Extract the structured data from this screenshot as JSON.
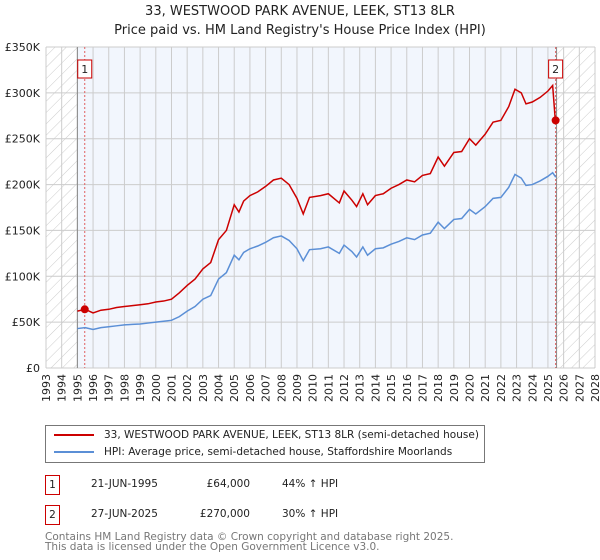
{
  "chart_data": {
    "type": "line",
    "title": "33, WESTWOOD PARK AVENUE, LEEK, ST13 8LR",
    "subtitle": "Price paid vs. HM Land Registry's House Price Index (HPI)",
    "xlim": [
      1993,
      2028
    ],
    "ylim": [
      0,
      350000
    ],
    "y_ticks": [
      0,
      50000,
      100000,
      150000,
      200000,
      250000,
      300000,
      350000
    ],
    "y_tick_labels": [
      "£0",
      "£50K",
      "£100K",
      "£150K",
      "£200K",
      "£250K",
      "£300K",
      "£350K"
    ],
    "x_tick_labels": [
      "1993",
      "1994",
      "1995",
      "1996",
      "1997",
      "1998",
      "1999",
      "2000",
      "2001",
      "2002",
      "2003",
      "2004",
      "2005",
      "2006",
      "2007",
      "2008",
      "2009",
      "2010",
      "2011",
      "2012",
      "2013",
      "2014",
      "2015",
      "2016",
      "2017",
      "2018",
      "2019",
      "2020",
      "2021",
      "2022",
      "2023",
      "2024",
      "2025",
      "2026",
      "2027",
      "2028"
    ],
    "grid": true,
    "series": [
      {
        "name": "33, WESTWOOD PARK AVENUE, LEEK, ST13 8LR (semi-detached house)",
        "color": "#cc0000",
        "x": [
          1995.0,
          1995.5,
          1996,
          1996.5,
          1997,
          1997.5,
          1998,
          1998.5,
          1999,
          1999.5,
          2000,
          2000.5,
          2001,
          2001.5,
          2002,
          2002.5,
          2003,
          2003.5,
          2004,
          2004.5,
          2005,
          2005.3,
          2005.6,
          2006,
          2006.5,
          2007,
          2007.5,
          2008,
          2008.5,
          2009,
          2009.4,
          2009.8,
          2010.5,
          2011,
          2011.7,
          2012,
          2012.5,
          2012.8,
          2013.2,
          2013.5,
          2014,
          2014.5,
          2015,
          2015.5,
          2016,
          2016.5,
          2017,
          2017.5,
          2018,
          2018.4,
          2019,
          2019.5,
          2020,
          2020.4,
          2021,
          2021.5,
          2022,
          2022.5,
          2022.9,
          2023.3,
          2023.6,
          2024,
          2024.5,
          2025,
          2025.3,
          2025.47
        ],
        "y": [
          62000,
          64000,
          60000,
          63000,
          64000,
          66000,
          67000,
          68000,
          69000,
          70000,
          72000,
          73000,
          75000,
          82000,
          90000,
          97000,
          108000,
          115000,
          140000,
          150000,
          178000,
          170000,
          182000,
          188000,
          192000,
          198000,
          205000,
          207000,
          200000,
          185000,
          168000,
          186000,
          188000,
          190000,
          180000,
          193000,
          183000,
          176000,
          190000,
          178000,
          188000,
          190000,
          196000,
          200000,
          205000,
          203000,
          210000,
          212000,
          230000,
          220000,
          235000,
          236000,
          250000,
          243000,
          255000,
          268000,
          270000,
          285000,
          304000,
          300000,
          288000,
          290000,
          295000,
          302000,
          308000,
          270000
        ]
      },
      {
        "name": "HPI: Average price, semi-detached house, Staffordshire Moorlands",
        "color": "#5b8fd6",
        "x": [
          1995.0,
          1995.5,
          1996,
          1996.5,
          1997,
          1997.5,
          1998,
          1998.5,
          1999,
          1999.5,
          2000,
          2000.5,
          2001,
          2001.5,
          2002,
          2002.5,
          2003,
          2003.5,
          2004,
          2004.5,
          2005,
          2005.3,
          2005.6,
          2006,
          2006.5,
          2007,
          2007.5,
          2008,
          2008.5,
          2009,
          2009.4,
          2009.8,
          2010.5,
          2011,
          2011.7,
          2012,
          2012.5,
          2012.8,
          2013.2,
          2013.5,
          2014,
          2014.5,
          2015,
          2015.5,
          2016,
          2016.5,
          2017,
          2017.5,
          2018,
          2018.4,
          2019,
          2019.5,
          2020,
          2020.4,
          2021,
          2021.5,
          2022,
          2022.5,
          2022.9,
          2023.3,
          2023.6,
          2024,
          2024.5,
          2025,
          2025.3,
          2025.5
        ],
        "y": [
          43000,
          44000,
          42000,
          44000,
          45000,
          46000,
          47000,
          47500,
          48000,
          49000,
          50000,
          51000,
          52000,
          56000,
          62000,
          67000,
          75000,
          79000,
          97000,
          104000,
          123000,
          118000,
          126000,
          130000,
          133000,
          137000,
          142000,
          144000,
          139000,
          130000,
          117000,
          129000,
          130000,
          132000,
          125000,
          134000,
          127000,
          121000,
          132000,
          123000,
          130000,
          131000,
          135000,
          138000,
          142000,
          140000,
          145000,
          147000,
          159000,
          152000,
          162000,
          163000,
          173000,
          168000,
          176000,
          185000,
          186000,
          197000,
          211000,
          207000,
          199000,
          200000,
          204000,
          209000,
          213000,
          208000
        ]
      }
    ],
    "sales": [
      {
        "label": "1",
        "x": 1995.47,
        "y": 64000
      },
      {
        "label": "2",
        "x": 2025.49,
        "y": 270000
      }
    ],
    "legend_position": "below"
  },
  "legend": {
    "items": [
      "33, WESTWOOD PARK AVENUE, LEEK, ST13 8LR (semi-detached house)",
      "HPI: Average price, semi-detached house, Staffordshire Moorlands"
    ]
  },
  "table": [
    {
      "num": "1",
      "date": "21-JUN-1995",
      "price": "£64,000",
      "hpi": "44% ↑ HPI"
    },
    {
      "num": "2",
      "date": "27-JUN-2025",
      "price": "£270,000",
      "hpi": "30% ↑ HPI"
    }
  ],
  "footer": [
    "Contains HM Land Registry data © Crown copyright and database right 2025.",
    "This data is licensed under the Open Government Licence v3.0."
  ]
}
